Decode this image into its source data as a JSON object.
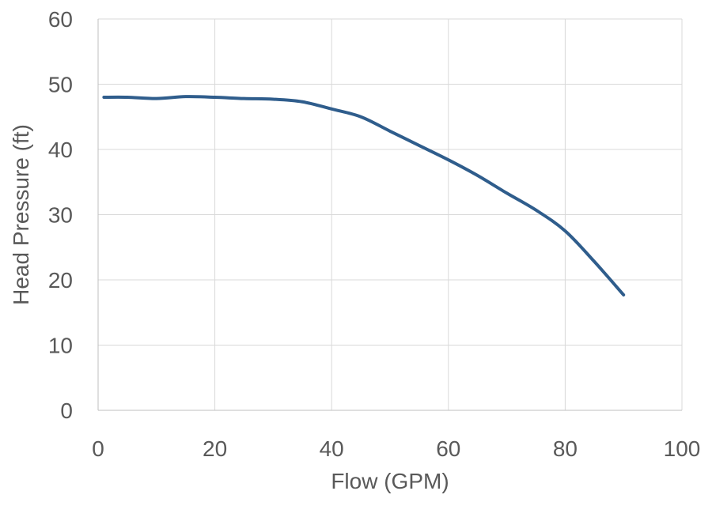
{
  "chart_data": {
    "type": "line",
    "title": "",
    "xlabel": "Flow (GPM)",
    "ylabel": "Head Pressure (ft)",
    "xlim": [
      0,
      100
    ],
    "ylim": [
      0,
      60
    ],
    "x_ticks": [
      "0",
      "20",
      "40",
      "60",
      "80",
      "100"
    ],
    "y_ticks": [
      "0",
      "10",
      "20",
      "30",
      "40",
      "50",
      "60"
    ],
    "grid": true,
    "legend": "none",
    "series": [
      {
        "color": "#2f5d8c",
        "x": [
          1,
          5,
          10,
          15,
          20,
          25,
          30,
          35,
          40,
          45,
          50,
          55,
          60,
          65,
          70,
          75,
          80,
          85,
          90
        ],
        "y": [
          48.0,
          48.0,
          47.8,
          48.1,
          48.0,
          47.8,
          47.7,
          47.3,
          46.2,
          45.0,
          42.8,
          40.6,
          38.4,
          36.0,
          33.3,
          30.7,
          27.5,
          22.8,
          17.7
        ]
      }
    ]
  }
}
